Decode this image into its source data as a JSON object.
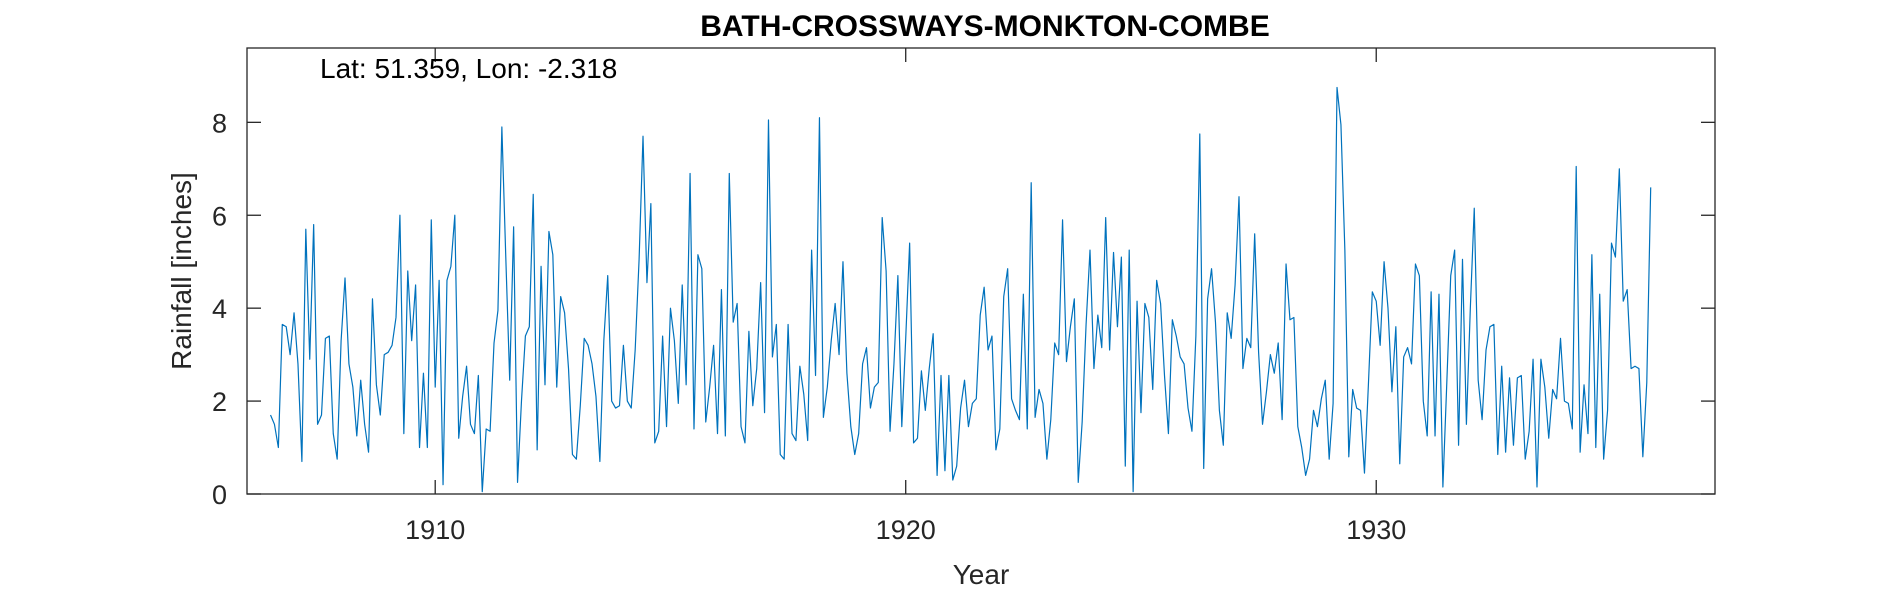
{
  "chart_data": {
    "type": "line",
    "title": "BATH-CROSSWAYS-MONKTON-COMBE",
    "annotation": "Lat: 51.359, Lon: -2.318",
    "xlabel": "Year",
    "ylabel": "Rainfall [inches]",
    "xlim": [
      1906.0,
      1937.2
    ],
    "ylim": [
      0,
      9.6
    ],
    "xticks": [
      1910,
      1920,
      1930
    ],
    "yticks": [
      0,
      2,
      4,
      6,
      8
    ],
    "grid": false,
    "line_color": "#0072BD",
    "series": [
      {
        "x_start": 1906.5,
        "x_step": 0.0833333,
        "values": [
          1.7,
          1.5,
          1.0,
          3.65,
          3.6,
          3.0,
          3.9,
          2.8,
          0.7,
          5.7,
          2.9,
          5.8,
          1.5,
          1.7,
          3.35,
          3.4,
          1.3,
          0.75,
          3.3,
          4.65,
          2.8,
          2.3,
          1.25,
          2.45,
          1.5,
          0.9,
          4.2,
          2.35,
          1.7,
          3.0,
          3.05,
          3.2,
          3.8,
          6.0,
          1.3,
          4.8,
          3.3,
          4.5,
          1.0,
          2.6,
          1.0,
          5.9,
          2.3,
          4.6,
          0.2,
          4.6,
          4.9,
          6.0,
          1.2,
          2.1,
          2.75,
          1.5,
          1.3,
          2.55,
          0.05,
          1.4,
          1.35,
          3.25,
          3.95,
          7.9,
          5.1,
          2.45,
          5.75,
          0.25,
          2.0,
          3.4,
          3.6,
          6.45,
          0.95,
          4.9,
          2.35,
          5.65,
          5.15,
          2.3,
          4.25,
          3.9,
          2.7,
          0.85,
          0.75,
          1.9,
          3.35,
          3.2,
          2.8,
          2.1,
          0.7,
          3.3,
          4.7,
          2.0,
          1.85,
          1.9,
          3.2,
          2.0,
          1.85,
          3.1,
          5.05,
          7.7,
          4.55,
          6.25,
          1.1,
          1.35,
          3.4,
          1.45,
          4.0,
          3.3,
          1.95,
          4.5,
          2.35,
          6.9,
          1.4,
          5.15,
          4.85,
          1.55,
          2.3,
          3.2,
          1.3,
          4.4,
          1.25,
          6.9,
          3.7,
          4.1,
          1.45,
          1.1,
          3.5,
          1.9,
          2.7,
          4.55,
          1.75,
          8.05,
          2.95,
          3.65,
          0.85,
          0.75,
          3.65,
          1.3,
          1.15,
          2.75,
          2.15,
          1.15,
          5.25,
          2.55,
          8.1,
          1.65,
          2.3,
          3.3,
          4.1,
          3.0,
          5.0,
          2.6,
          1.45,
          0.85,
          1.3,
          2.8,
          3.15,
          1.85,
          2.3,
          2.4,
          5.95,
          4.8,
          1.35,
          2.8,
          4.7,
          1.45,
          3.35,
          5.4,
          1.1,
          1.2,
          2.65,
          1.8,
          2.7,
          3.45,
          0.4,
          2.55,
          0.5,
          2.55,
          0.3,
          0.6,
          1.85,
          2.45,
          1.45,
          1.95,
          2.05,
          3.85,
          4.45,
          3.1,
          3.4,
          0.95,
          1.4,
          4.25,
          4.85,
          2.05,
          1.8,
          1.6,
          4.3,
          1.4,
          6.7,
          1.65,
          2.25,
          1.95,
          0.75,
          1.6,
          3.25,
          3.0,
          5.9,
          2.85,
          3.6,
          4.2,
          0.25,
          1.55,
          3.65,
          5.25,
          2.7,
          3.85,
          3.15,
          5.95,
          3.1,
          5.2,
          3.6,
          5.1,
          0.6,
          5.25,
          0.05,
          4.15,
          1.75,
          4.1,
          3.8,
          2.25,
          4.6,
          4.1,
          2.55,
          1.3,
          3.75,
          3.4,
          2.95,
          2.8,
          1.85,
          1.35,
          3.4,
          7.75,
          0.55,
          4.2,
          4.85,
          3.7,
          1.8,
          1.05,
          3.9,
          3.35,
          4.5,
          6.4,
          2.7,
          3.35,
          3.15,
          5.6,
          3.05,
          1.5,
          2.2,
          3.0,
          2.6,
          3.25,
          1.6,
          4.95,
          3.75,
          3.8,
          1.45,
          1.0,
          0.4,
          0.75,
          1.8,
          1.45,
          2.05,
          2.45,
          0.75,
          1.95,
          8.75,
          7.95,
          5.25,
          0.8,
          2.25,
          1.85,
          1.8,
          0.45,
          2.35,
          4.35,
          4.15,
          3.2,
          5.0,
          4.0,
          2.2,
          3.6,
          0.65,
          2.95,
          3.15,
          2.8,
          4.95,
          4.7,
          2.0,
          1.25,
          4.35,
          1.25,
          4.3,
          0.15,
          2.4,
          4.7,
          5.25,
          1.05,
          5.05,
          1.5,
          4.0,
          6.15,
          2.45,
          1.6,
          3.1,
          3.6,
          3.65,
          0.85,
          2.75,
          0.9,
          2.5,
          1.05,
          2.5,
          2.55,
          0.75,
          1.35,
          2.9,
          0.15,
          2.9,
          2.3,
          1.2,
          2.25,
          2.05,
          3.35,
          2.0,
          1.95,
          1.4,
          7.05,
          0.9,
          2.35,
          1.3,
          5.15,
          1.0,
          4.3,
          0.75,
          1.8,
          5.4,
          5.1,
          7.0,
          4.15,
          4.4,
          2.7,
          2.75,
          2.7,
          0.8,
          2.4,
          6.6
        ]
      }
    ]
  }
}
